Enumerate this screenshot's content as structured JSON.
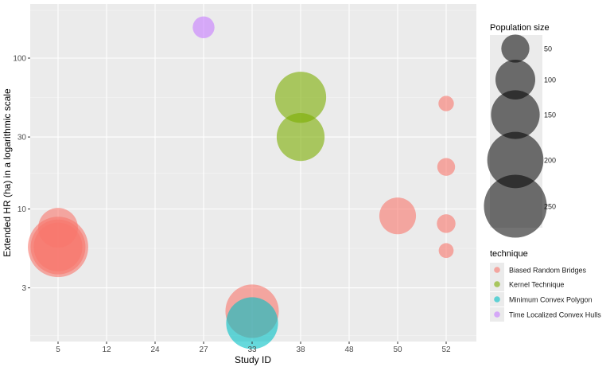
{
  "chart_data": {
    "type": "scatter",
    "xlabel": "Study ID",
    "ylabel": "Extended HR (ha) in a logarithmic scale",
    "x_categories": [
      "5",
      "12",
      "24",
      "27",
      "33",
      "38",
      "48",
      "50",
      "52"
    ],
    "y_scale": "log10",
    "y_ticks": [
      3,
      10,
      30,
      100
    ],
    "y_tick_labels": [
      "3",
      "10",
      "30",
      "100"
    ],
    "ylim": [
      1.55,
      190
    ],
    "grid": true,
    "size_legend": {
      "title": "Population size",
      "values": [
        50,
        100,
        150,
        200,
        250
      ],
      "labels": [
        "50",
        "100",
        "150",
        "200",
        "250"
      ]
    },
    "color_legend": {
      "title": "technique",
      "items": [
        {
          "name": "Biased Random Bridges",
          "color": "#F8766D"
        },
        {
          "name": "Kernel Technique",
          "color": "#7CAE00"
        },
        {
          "name": "Minimum Convex Polygon",
          "color": "#00BFC4"
        },
        {
          "name": "Time Localized Convex Hulls",
          "color": "#C77CFF"
        }
      ]
    },
    "points": [
      {
        "study": "5",
        "hr": 7.5,
        "population": 100,
        "technique": "Biased Random Bridges"
      },
      {
        "study": "5",
        "hr": 5.6,
        "population": 230,
        "technique": "Biased Random Bridges"
      },
      {
        "study": "5",
        "hr": 5.6,
        "population": 190,
        "technique": "Biased Random Bridges"
      },
      {
        "study": "5",
        "hr": 5.6,
        "population": 150,
        "technique": "Biased Random Bridges"
      },
      {
        "study": "27",
        "hr": 160,
        "population": 30,
        "technique": "Time Localized Convex Hulls"
      },
      {
        "study": "33",
        "hr": 2.1,
        "population": 180,
        "technique": "Biased Random Bridges"
      },
      {
        "study": "33",
        "hr": 1.75,
        "population": 170,
        "technique": "Minimum Convex Polygon"
      },
      {
        "study": "38",
        "hr": 55,
        "population": 165,
        "technique": "Kernel Technique"
      },
      {
        "study": "38",
        "hr": 30,
        "population": 145,
        "technique": "Kernel Technique"
      },
      {
        "study": "50",
        "hr": 9,
        "population": 85,
        "technique": "Biased Random Bridges"
      },
      {
        "study": "52",
        "hr": 50,
        "population": 15,
        "technique": "Biased Random Bridges"
      },
      {
        "study": "52",
        "hr": 19,
        "population": 20,
        "technique": "Biased Random Bridges"
      },
      {
        "study": "52",
        "hr": 8,
        "population": 22,
        "technique": "Biased Random Bridges"
      },
      {
        "study": "52",
        "hr": 5.3,
        "population": 14,
        "technique": "Biased Random Bridges"
      }
    ]
  }
}
